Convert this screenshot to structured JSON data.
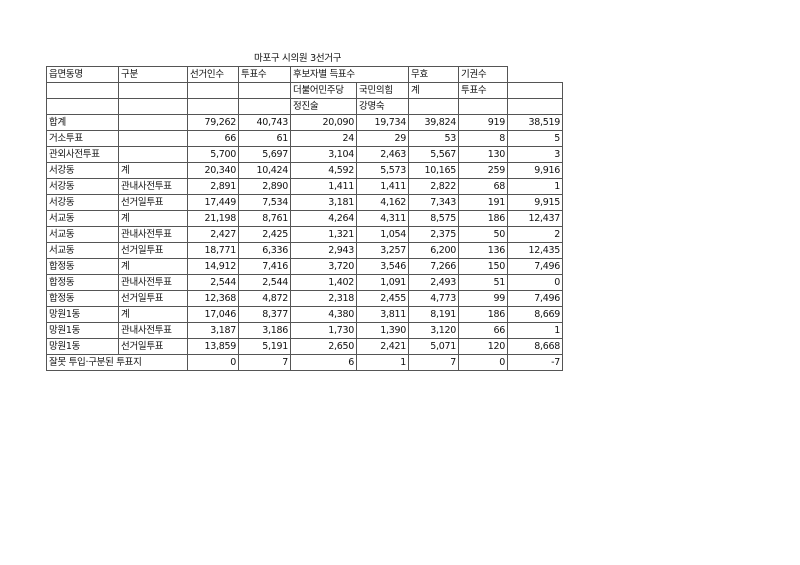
{
  "title": "마포구 시의원 3선거구",
  "header": {
    "row1": [
      "읍면동명",
      "구분",
      "선거인수",
      "투표수",
      "후보자별 득표수",
      "",
      "",
      "무효",
      "기권수"
    ],
    "row2": [
      "",
      "",
      "",
      "",
      "더불어민주당",
      "국민의힘",
      "계",
      "투표수",
      ""
    ],
    "row3": [
      "",
      "",
      "",
      "",
      "정진술",
      "강명숙",
      "",
      "",
      ""
    ]
  },
  "rows": [
    [
      "합계",
      "",
      "79,262",
      "40,743",
      "20,090",
      "19,734",
      "39,824",
      "919",
      "38,519"
    ],
    [
      "거소투표",
      "",
      "66",
      "61",
      "24",
      "29",
      "53",
      "8",
      "5"
    ],
    [
      "관외사전투표",
      "",
      "5,700",
      "5,697",
      "3,104",
      "2,463",
      "5,567",
      "130",
      "3"
    ],
    [
      "서강동",
      "계",
      "20,340",
      "10,424",
      "4,592",
      "5,573",
      "10,165",
      "259",
      "9,916"
    ],
    [
      "서강동",
      "관내사전투표",
      "2,891",
      "2,890",
      "1,411",
      "1,411",
      "2,822",
      "68",
      "1"
    ],
    [
      "서강동",
      "선거일투표",
      "17,449",
      "7,534",
      "3,181",
      "4,162",
      "7,343",
      "191",
      "9,915"
    ],
    [
      "서교동",
      "계",
      "21,198",
      "8,761",
      "4,264",
      "4,311",
      "8,575",
      "186",
      "12,437"
    ],
    [
      "서교동",
      "관내사전투표",
      "2,427",
      "2,425",
      "1,321",
      "1,054",
      "2,375",
      "50",
      "2"
    ],
    [
      "서교동",
      "선거일투표",
      "18,771",
      "6,336",
      "2,943",
      "3,257",
      "6,200",
      "136",
      "12,435"
    ],
    [
      "합정동",
      "계",
      "14,912",
      "7,416",
      "3,720",
      "3,546",
      "7,266",
      "150",
      "7,496"
    ],
    [
      "합정동",
      "관내사전투표",
      "2,544",
      "2,544",
      "1,402",
      "1,091",
      "2,493",
      "51",
      "0"
    ],
    [
      "합정동",
      "선거일투표",
      "12,368",
      "4,872",
      "2,318",
      "2,455",
      "4,773",
      "99",
      "7,496"
    ],
    [
      "망원1동",
      "계",
      "17,046",
      "8,377",
      "4,380",
      "3,811",
      "8,191",
      "186",
      "8,669"
    ],
    [
      "망원1동",
      "관내사전투표",
      "3,187",
      "3,186",
      "1,730",
      "1,390",
      "3,120",
      "66",
      "1"
    ],
    [
      "망원1동",
      "선거일투표",
      "13,859",
      "5,191",
      "2,650",
      "2,421",
      "5,071",
      "120",
      "8,668"
    ],
    [
      "잘못 투입·구분된 투표지",
      "",
      "0",
      "7",
      "6",
      "1",
      "7",
      "0",
      "-7"
    ]
  ]
}
